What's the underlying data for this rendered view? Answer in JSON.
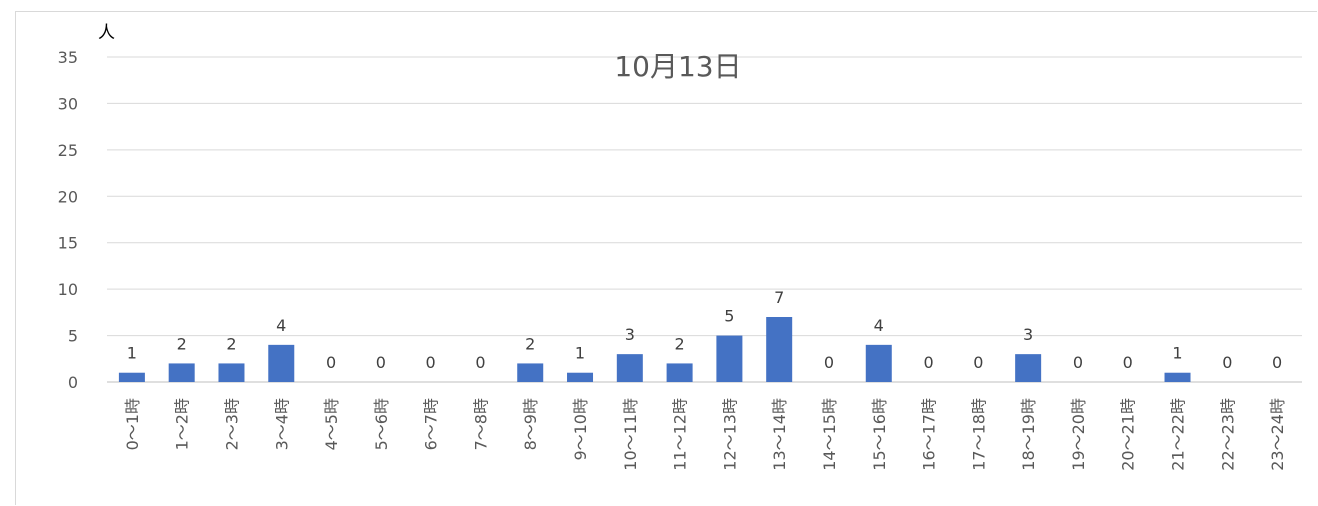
{
  "chart_data": {
    "type": "bar",
    "title": "10月13日",
    "ylabel": "人",
    "xlabel": "",
    "ylim": [
      0,
      35
    ],
    "yticks": [
      0,
      5,
      10,
      15,
      20,
      25,
      30,
      35
    ],
    "grid": true,
    "legend": "none",
    "bar_color": "#4472c4",
    "categories": [
      "0～1時",
      "1～2時",
      "2～3時",
      "3～4時",
      "4～5時",
      "5～6時",
      "6～7時",
      "7～8時",
      "8～9時",
      "9～10時",
      "10～11時",
      "11～12時",
      "12～13時",
      "13～14時",
      "14～15時",
      "15～16時",
      "16～17時",
      "17～18時",
      "18～19時",
      "19～20時",
      "20～21時",
      "21～22時",
      "22～23時",
      "23～24時"
    ],
    "values": [
      1,
      2,
      2,
      4,
      0,
      0,
      0,
      0,
      2,
      1,
      3,
      2,
      5,
      7,
      0,
      4,
      0,
      0,
      3,
      0,
      0,
      1,
      0,
      0
    ]
  }
}
